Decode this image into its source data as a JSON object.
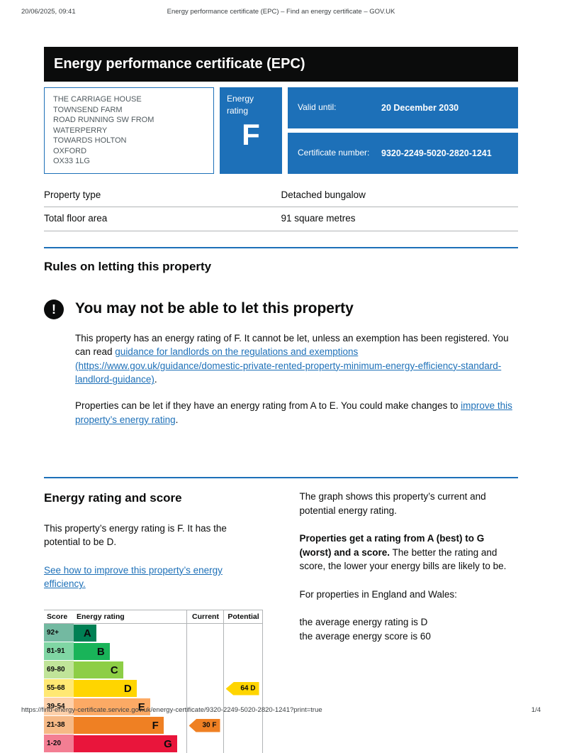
{
  "colors": {
    "accent_blue": "#1d70b8",
    "banner_black": "#0b0c0c",
    "border_grey": "#b1b4b6"
  },
  "print_header": {
    "datetime": "20/06/2025, 09:41",
    "title": "Energy performance certificate (EPC) – Find an energy certificate – GOV.UK"
  },
  "print_footer": {
    "url": "https://find-energy-certificate.service.gov.uk/energy-certificate/9320-2249-5020-2820-1241?print=true",
    "page": "1/4"
  },
  "banner": {
    "title": "Energy performance certificate (EPC)"
  },
  "summary": {
    "address_lines": [
      "THE CARRIAGE HOUSE",
      "TOWNSEND FARM",
      "ROAD RUNNING SW FROM WATERPERRY",
      "TOWARDS HOLTON",
      "OXFORD",
      "OX33 1LG"
    ],
    "energy_rating_label": "Energy rating",
    "energy_rating": "F",
    "valid_until_label": "Valid until:",
    "valid_until_value": "20 December 2030",
    "certificate_number_label": "Certificate number:",
    "certificate_number_value": "9320-2249-5020-2820-1241"
  },
  "property_facts": {
    "rows": [
      {
        "label": "Property type",
        "value": "Detached bungalow"
      },
      {
        "label": "Total floor area",
        "value": "91 square metres"
      }
    ]
  },
  "letting_rules": {
    "section_title": "Rules on letting this property",
    "warning_icon": "!",
    "warning_title": "You may not be able to let this property",
    "para1_before": "This property has an energy rating of F. It cannot be let, unless an exemption has been registered. You can read ",
    "para1_link": "guidance for landlords on the regulations and exemptions (https://www.gov.uk/guidance/domestic-private-rented-property-minimum-energy-efficiency-standard-landlord-guidance)",
    "para1_after": ".",
    "para2_before": "Properties can be let if they have an energy rating from A to E. You could make changes to ",
    "para2_link": "improve this property’s energy rating",
    "para2_after": "."
  },
  "rating_section": {
    "title": "Energy rating and score",
    "intro": "This property’s energy rating is F. It has the potential to be D.",
    "improve_link": "See how to improve this property’s energy efficiency.",
    "right_para1": "The graph shows this property’s current and potential energy rating.",
    "right_para2_bold": "Properties get a rating from A (best) to G (worst) and a score.",
    "right_para2_rest": " The better the rating and score, the lower your energy bills are likely to be.",
    "right_para3": "For properties in England and Wales:",
    "right_para4_line1": "the average energy rating is D",
    "right_para4_line2": "the average energy score is 60"
  },
  "chart_data": {
    "type": "epc-rating",
    "headers": [
      "Score",
      "Energy rating",
      "Current",
      "Potential"
    ],
    "bands": [
      {
        "score": "92+",
        "letter": "A",
        "color": "#008054",
        "tint": "#73b9a1",
        "width_pct": 20
      },
      {
        "score": "81-91",
        "letter": "B",
        "color": "#19b459",
        "tint": "#80d6a4",
        "width_pct": 32
      },
      {
        "score": "69-80",
        "letter": "C",
        "color": "#8dce46",
        "tint": "#c0e499",
        "width_pct": 44
      },
      {
        "score": "55-68",
        "letter": "D",
        "color": "#ffd500",
        "tint": "#ffe873",
        "width_pct": 56
      },
      {
        "score": "39-54",
        "letter": "E",
        "color": "#fcaa65",
        "tint": "#fdd0aa",
        "width_pct": 68
      },
      {
        "score": "21-38",
        "letter": "F",
        "color": "#ef8023",
        "tint": "#f6b986",
        "width_pct": 80
      },
      {
        "score": "1-20",
        "letter": "G",
        "color": "#e9153b",
        "tint": "#f37e93",
        "width_pct": 92
      }
    ],
    "current": {
      "score": 30,
      "letter": "F",
      "band_index": 5,
      "color": "#ef8023"
    },
    "potential": {
      "score": 64,
      "letter": "D",
      "band_index": 3,
      "color": "#ffd500"
    }
  }
}
